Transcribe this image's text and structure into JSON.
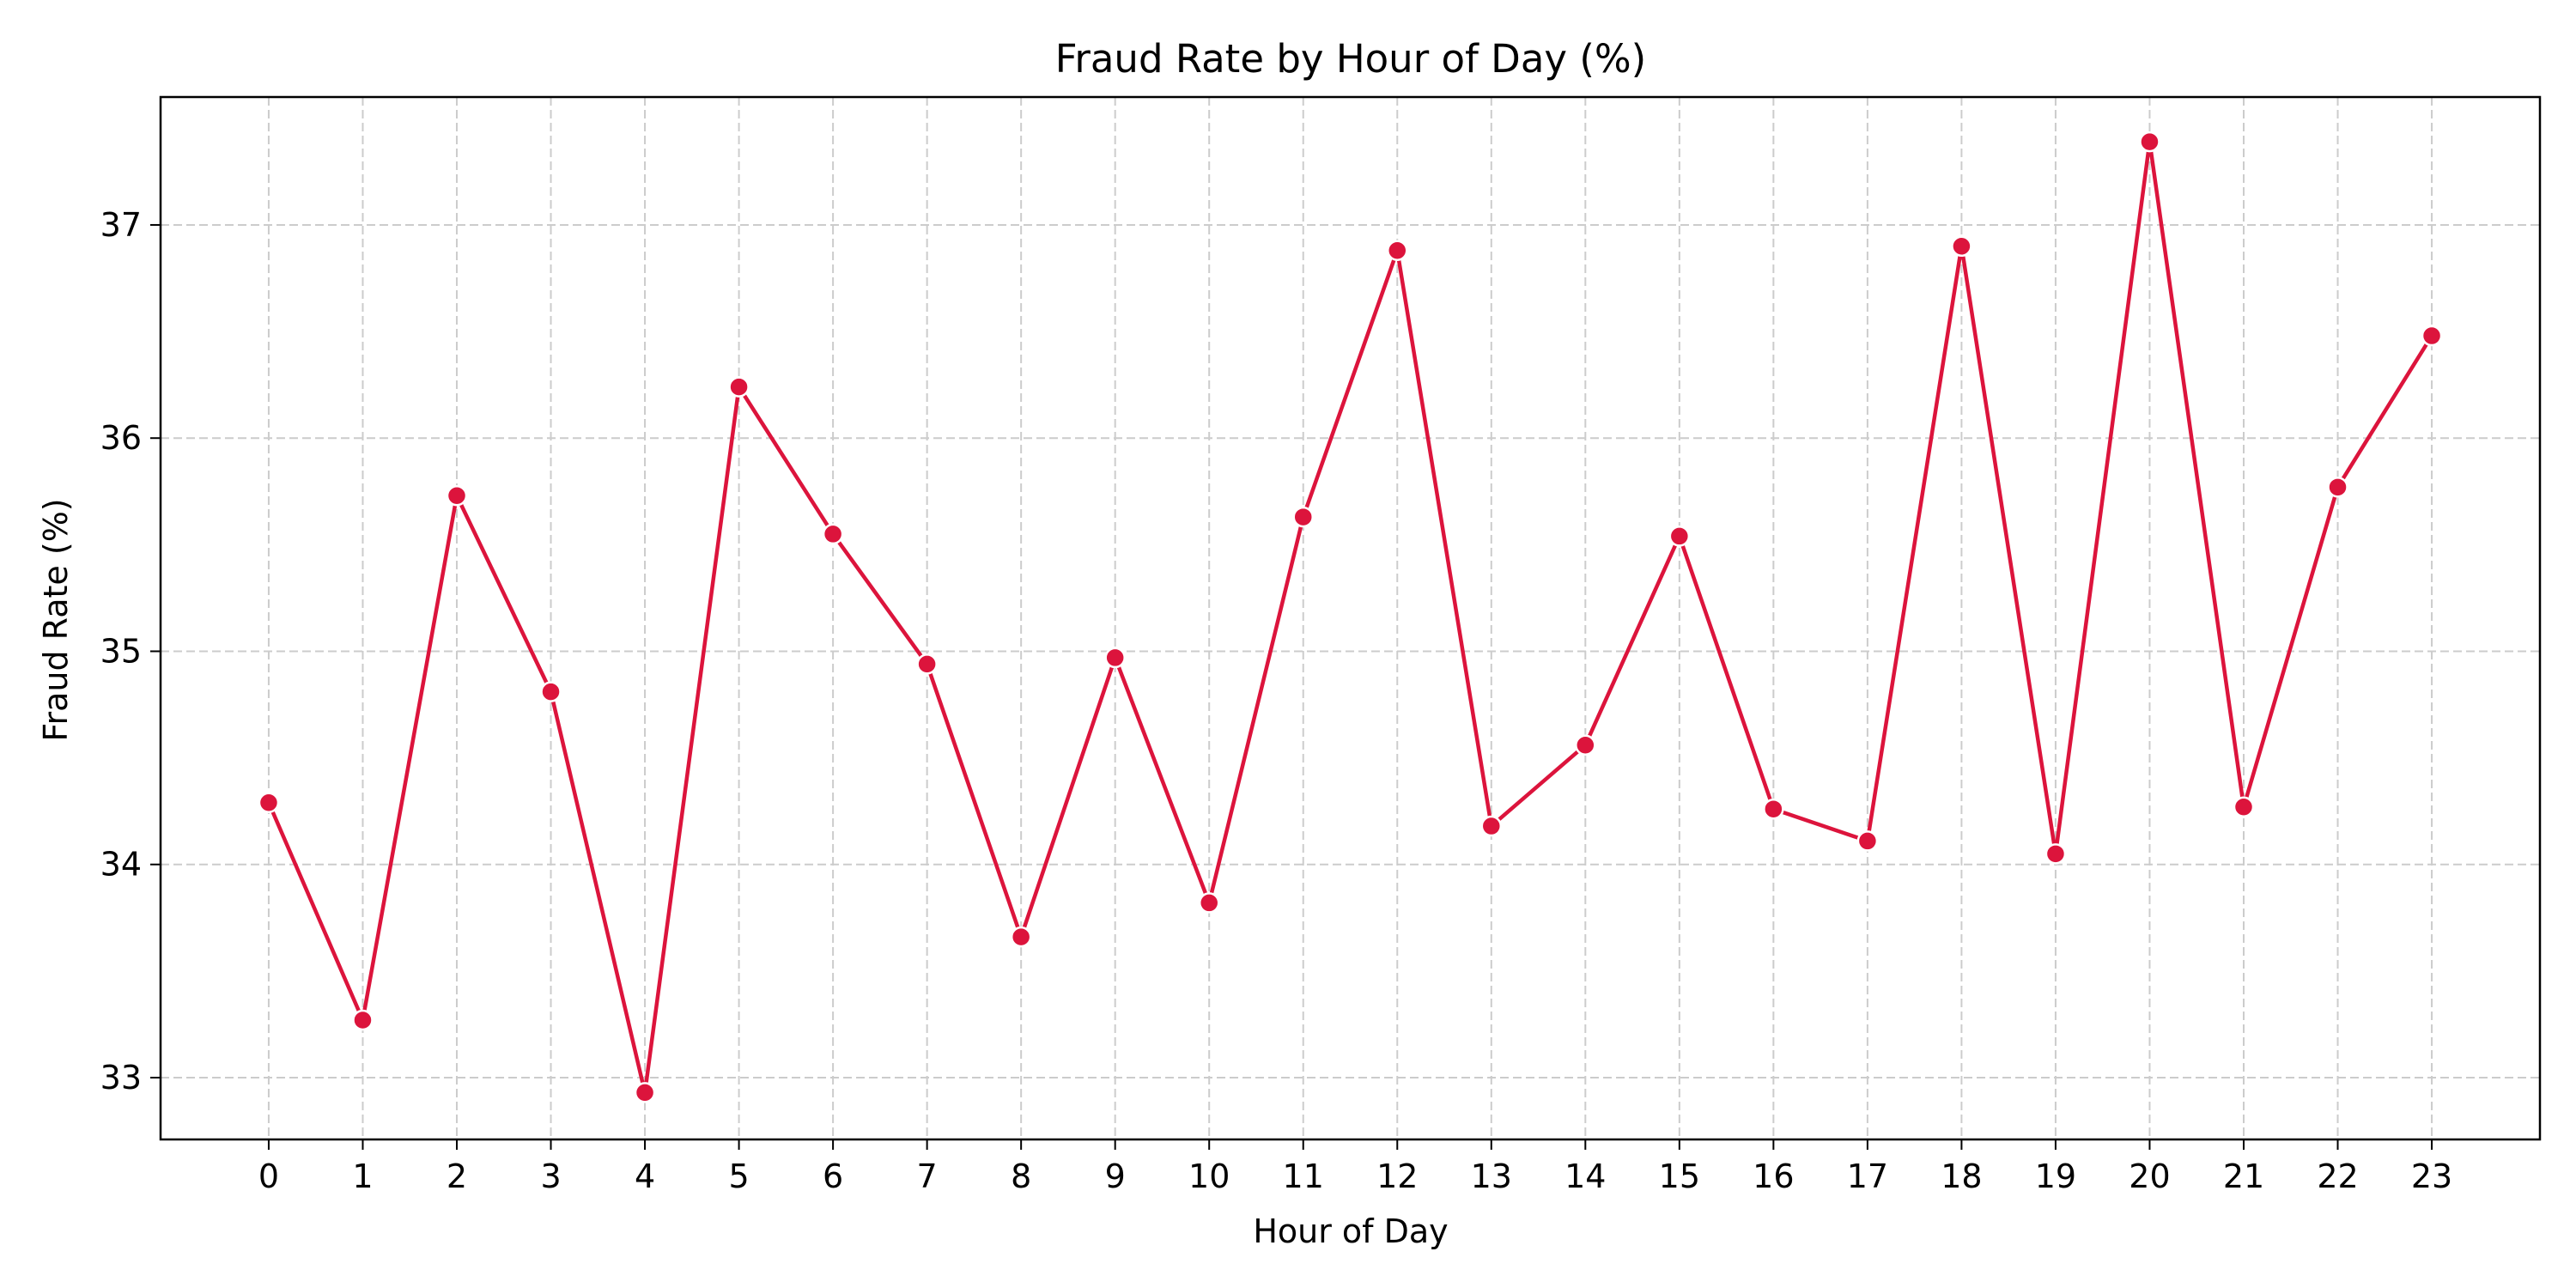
{
  "chart_data": {
    "type": "line",
    "title": "Fraud Rate by Hour of Day (%)",
    "xlabel": "Hour of Day",
    "ylabel": "Fraud Rate (%)",
    "x": [
      0,
      1,
      2,
      3,
      4,
      5,
      6,
      7,
      8,
      9,
      10,
      11,
      12,
      13,
      14,
      15,
      16,
      17,
      18,
      19,
      20,
      21,
      22,
      23
    ],
    "x_tick_labels": [
      "0",
      "1",
      "2",
      "3",
      "4",
      "5",
      "6",
      "7",
      "8",
      "9",
      "10",
      "11",
      "12",
      "13",
      "14",
      "15",
      "16",
      "17",
      "18",
      "19",
      "20",
      "21",
      "22",
      "23"
    ],
    "y_ticks": [
      33,
      34,
      35,
      36,
      37
    ],
    "y_tick_labels": [
      "33",
      "34",
      "35",
      "36",
      "37"
    ],
    "xlim": [
      -1.15,
      24.15
    ],
    "ylim": [
      32.71,
      37.6
    ],
    "grid": true,
    "series": [
      {
        "values": [
          34.29,
          33.27,
          35.73,
          34.81,
          32.93,
          36.24,
          35.55,
          34.94,
          33.66,
          34.97,
          33.82,
          35.63,
          36.88,
          34.18,
          34.56,
          35.54,
          34.26,
          34.11,
          36.9,
          34.05,
          37.39,
          34.27,
          35.77,
          36.48
        ],
        "color": "#dc143c",
        "marker": "circle"
      }
    ]
  }
}
